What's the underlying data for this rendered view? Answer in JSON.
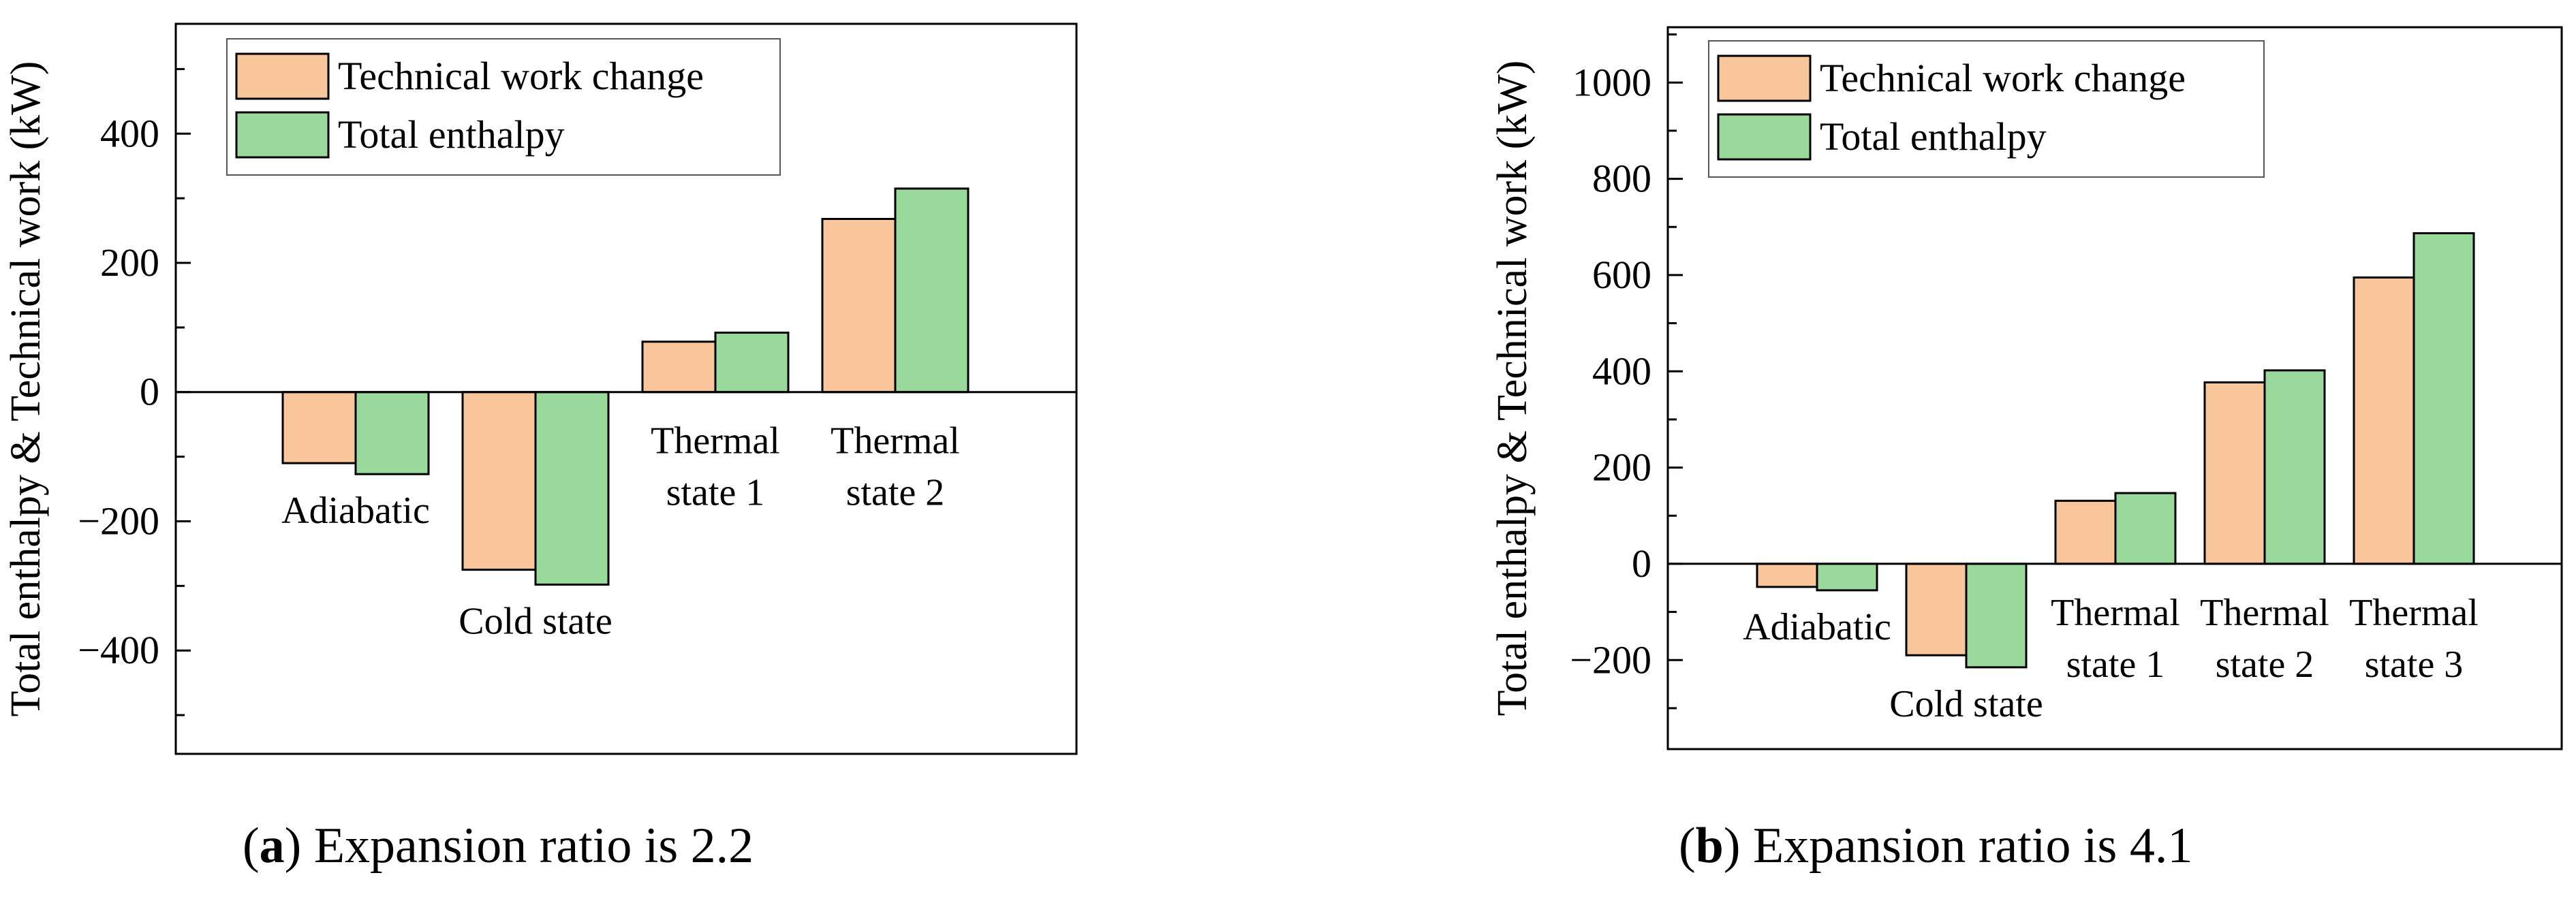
{
  "colors": {
    "technical": "#f9c59b",
    "enthalpy": "#99d99c",
    "stroke": "#000000"
  },
  "captions": [
    {
      "letter": "a",
      "text": " Expansion ratio is 2.2"
    },
    {
      "letter": "b",
      "text": " Expansion ratio is 4.1"
    }
  ],
  "chart_data": [
    {
      "type": "bar",
      "ylabel": "Total enthalpy & Technical work (kW)",
      "ylim": [
        -560,
        570
      ],
      "yticks": [
        -400,
        -200,
        0,
        200,
        400
      ],
      "categories": [
        [
          "Adiabatic"
        ],
        [
          "Cold state"
        ],
        [
          "Thermal",
          "state 1"
        ],
        [
          "Thermal",
          "state 2"
        ]
      ],
      "category_label_side": [
        "below",
        "below",
        "above",
        "above"
      ],
      "series": [
        {
          "name": "Technical work change",
          "values": [
            -110,
            -275,
            78,
            268
          ]
        },
        {
          "name": "Total enthalpy",
          "values": [
            -127,
            -298,
            92,
            315
          ]
        }
      ],
      "legend": "top-left"
    },
    {
      "type": "bar",
      "ylabel": "Total enthalpy & Technical work (kW)",
      "ylim": [
        -385,
        1115
      ],
      "yticks": [
        -200,
        0,
        200,
        400,
        600,
        800,
        1000
      ],
      "categories": [
        [
          "Adiabatic"
        ],
        [
          "Cold state"
        ],
        [
          "Thermal",
          "state 1"
        ],
        [
          "Thermal",
          "state 2"
        ],
        [
          "Thermal",
          "state 3"
        ]
      ],
      "category_label_side": [
        "below",
        "below",
        "above",
        "above",
        "above"
      ],
      "series": [
        {
          "name": "Technical work change",
          "values": [
            -48,
            -190,
            131,
            377,
            595
          ]
        },
        {
          "name": "Total enthalpy",
          "values": [
            -55,
            -215,
            147,
            402,
            687
          ]
        }
      ],
      "legend": "top-left"
    }
  ]
}
